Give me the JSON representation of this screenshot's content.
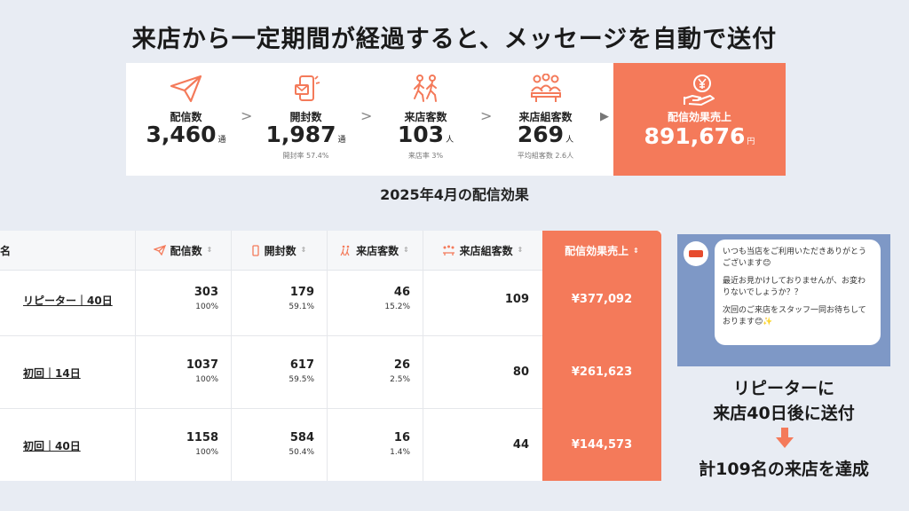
{
  "headline": "来店から一定期間が経過すると、メッセージを自動で送付",
  "funnel": {
    "steps": [
      {
        "icon": "paper-plane-icon",
        "label": "配信数",
        "value": "3,460",
        "unit": "通",
        "sub": ""
      },
      {
        "icon": "phone-open-icon",
        "label": "開封数",
        "value": "1,987",
        "unit": "通",
        "sub": "開封率 57.4%"
      },
      {
        "icon": "walking-people-icon",
        "label": "来店客数",
        "value": "103",
        "unit": "人",
        "sub": "来店率 3%"
      },
      {
        "icon": "group-table-icon",
        "label": "来店組客数",
        "value": "269",
        "unit": "人",
        "sub": "平均組客数 2.6人"
      }
    ],
    "separator": ">",
    "final": {
      "icon": "yen-hand-icon",
      "label": "配信効果売上",
      "value": "891,676",
      "unit": "円"
    }
  },
  "period": "2025年4月の配信効果",
  "table": {
    "headers": {
      "name": "名",
      "sent": "配信数",
      "opened": "開封数",
      "visitors": "来店客数",
      "groups": "来店組客数",
      "revenue": "配信効果売上"
    },
    "sort_icon": "⇕",
    "rows": [
      {
        "name": "リピーター｜40日",
        "sent": "303",
        "sent_pct": "100%",
        "opened": "179",
        "opened_pct": "59.1%",
        "visitors": "46",
        "visitors_pct": "15.2%",
        "groups": "109",
        "revenue": "¥377,092"
      },
      {
        "name": "初回｜14日",
        "sent": "1037",
        "sent_pct": "100%",
        "opened": "617",
        "opened_pct": "59.5%",
        "visitors": "26",
        "visitors_pct": "2.5%",
        "groups": "80",
        "revenue": "¥261,623"
      },
      {
        "name": "初回｜40日",
        "sent": "1158",
        "sent_pct": "100%",
        "opened": "584",
        "opened_pct": "50.4%",
        "visitors": "16",
        "visitors_pct": "1.4%",
        "groups": "44",
        "revenue": "¥144,573"
      }
    ]
  },
  "message": {
    "p1": "いつも当店をご利用いただきありがとうございます😊",
    "p2": "最近お見かけしておりませんが、お変わりないでしょうか？？",
    "p3": "次回のご来店をスタッフ一同お待ちしております😊✨"
  },
  "caption": {
    "line1": "リピーターに",
    "line2": "来店40日後に送付",
    "result": "計109名の来店を達成"
  },
  "colors": {
    "accent": "#f47a5a",
    "background": "#e8ecf3",
    "chat_bg": "#7e98c6"
  }
}
